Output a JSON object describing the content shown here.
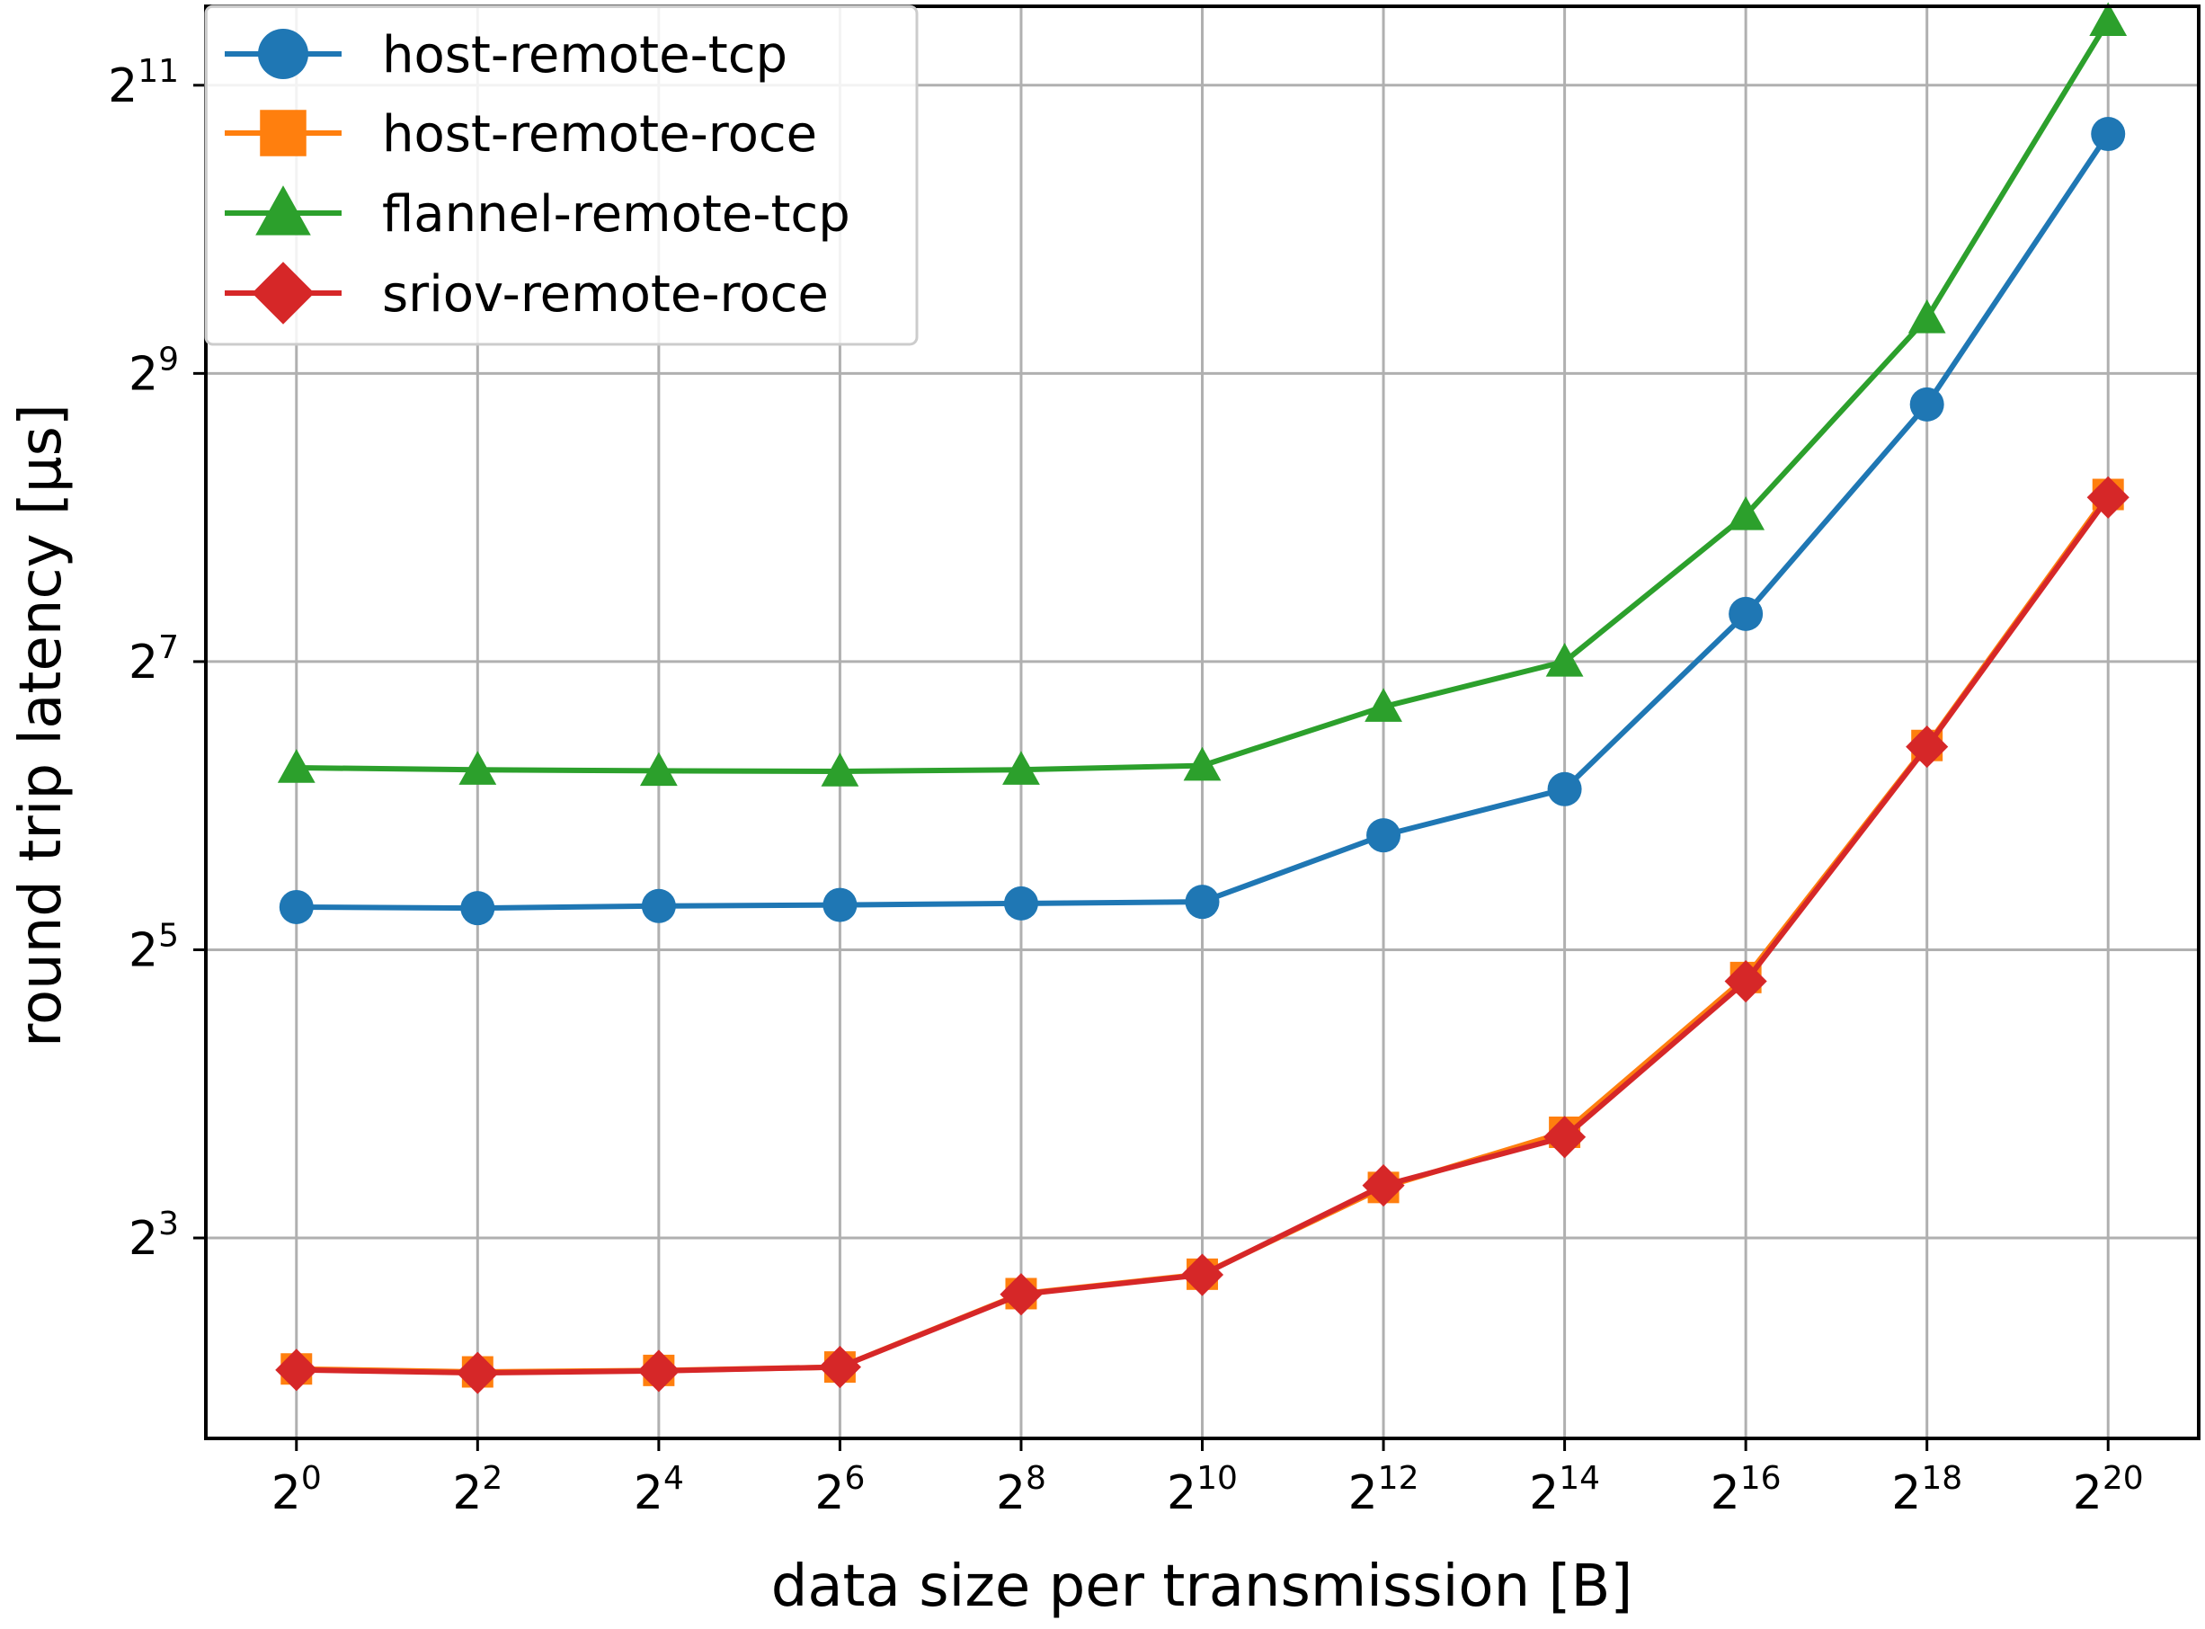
{
  "chart_data": {
    "type": "line",
    "xlabel": "data size per transmission [B]",
    "ylabel": "round trip latency [µs]",
    "x_scale": "log2",
    "y_scale": "log2",
    "x": [
      1,
      4,
      16,
      64,
      256,
      1024,
      4096,
      16384,
      65536,
      262144,
      1048576
    ],
    "xticks": [
      {
        "base": "2",
        "exp": "0"
      },
      {
        "base": "2",
        "exp": "2"
      },
      {
        "base": "2",
        "exp": "4"
      },
      {
        "base": "2",
        "exp": "6"
      },
      {
        "base": "2",
        "exp": "8"
      },
      {
        "base": "2",
        "exp": "10"
      },
      {
        "base": "2",
        "exp": "12"
      },
      {
        "base": "2",
        "exp": "14"
      },
      {
        "base": "2",
        "exp": "16"
      },
      {
        "base": "2",
        "exp": "18"
      },
      {
        "base": "2",
        "exp": "20"
      }
    ],
    "yticks": [
      {
        "base": "2",
        "exp": "3"
      },
      {
        "base": "2",
        "exp": "5"
      },
      {
        "base": "2",
        "exp": "7"
      },
      {
        "base": "2",
        "exp": "9"
      },
      {
        "base": "2",
        "exp": "11"
      }
    ],
    "xlim": [
      0.5,
      2097152
    ],
    "ylim": [
      3.05,
      2994
    ],
    "grid": true,
    "legend_position": "top-left",
    "series": [
      {
        "name": "host-remote-tcp",
        "color": "#1f77b4",
        "marker": "circle",
        "values": [
          39.3,
          39.1,
          39.5,
          39.7,
          40.0,
          40.3,
          55.5,
          69.3,
          161,
          441,
          1620
        ]
      },
      {
        "name": "host-remote-roce",
        "color": "#ff7f0e",
        "marker": "square",
        "values": [
          4.26,
          4.2,
          4.23,
          4.3,
          6.12,
          6.72,
          10.2,
          13.3,
          28.0,
          85.5,
          286
        ]
      },
      {
        "name": "flannel-remote-tcp",
        "color": "#2ca02c",
        "marker": "triangle",
        "values": [
          76.8,
          76.1,
          75.7,
          75.5,
          76.1,
          77.6,
          103,
          128,
          259,
          668,
          2790
        ]
      },
      {
        "name": "sriov-remote-roce",
        "color": "#d62728",
        "marker": "diamond",
        "values": [
          4.24,
          4.18,
          4.22,
          4.3,
          6.1,
          6.7,
          10.3,
          13.0,
          27.5,
          85.0,
          282
        ]
      }
    ]
  }
}
